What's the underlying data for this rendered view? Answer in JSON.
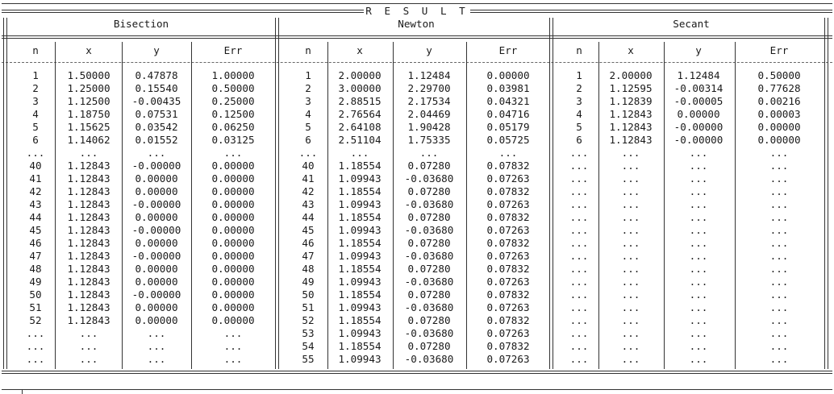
{
  "title": "R E S U L T",
  "methods": [
    "Bisection",
    "Newton",
    "Secant"
  ],
  "columns": [
    "n",
    "x",
    "y",
    "Err"
  ],
  "ellipsis": "...",
  "rows": [
    {
      "b": [
        "1",
        "1.50000",
        "0.47878",
        "1.00000"
      ],
      "nw": [
        "1",
        "2.00000",
        "1.12484",
        "0.00000"
      ],
      "s": [
        "1",
        "2.00000",
        "1.12484",
        "0.50000"
      ]
    },
    {
      "b": [
        "2",
        "1.25000",
        "0.15540",
        "0.50000"
      ],
      "nw": [
        "2",
        "3.00000",
        "2.29700",
        "0.03981"
      ],
      "s": [
        "2",
        "1.12595",
        "-0.00314",
        "0.77628"
      ]
    },
    {
      "b": [
        "3",
        "1.12500",
        "-0.00435",
        "0.25000"
      ],
      "nw": [
        "3",
        "2.88515",
        "2.17534",
        "0.04321"
      ],
      "s": [
        "3",
        "1.12839",
        "-0.00005",
        "0.00216"
      ]
    },
    {
      "b": [
        "4",
        "1.18750",
        "0.07531",
        "0.12500"
      ],
      "nw": [
        "4",
        "2.76564",
        "2.04469",
        "0.04716"
      ],
      "s": [
        "4",
        "1.12843",
        "0.00000",
        "0.00003"
      ]
    },
    {
      "b": [
        "5",
        "1.15625",
        "0.03542",
        "0.06250"
      ],
      "nw": [
        "5",
        "2.64108",
        "1.90428",
        "0.05179"
      ],
      "s": [
        "5",
        "1.12843",
        "-0.00000",
        "0.00000"
      ]
    },
    {
      "b": [
        "6",
        "1.14062",
        "0.01552",
        "0.03125"
      ],
      "nw": [
        "6",
        "2.51104",
        "1.75335",
        "0.05725"
      ],
      "s": [
        "6",
        "1.12843",
        "-0.00000",
        "0.00000"
      ]
    },
    {
      "b": [
        "...",
        "...",
        "...",
        "..."
      ],
      "nw": [
        "...",
        "...",
        "...",
        "..."
      ],
      "s": [
        "...",
        "...",
        "...",
        "..."
      ]
    },
    {
      "b": [
        "40",
        "1.12843",
        "-0.00000",
        "0.00000"
      ],
      "nw": [
        "40",
        "1.18554",
        "0.07280",
        "0.07832"
      ],
      "s": [
        "...",
        "...",
        "...",
        "..."
      ]
    },
    {
      "b": [
        "41",
        "1.12843",
        "0.00000",
        "0.00000"
      ],
      "nw": [
        "41",
        "1.09943",
        "-0.03680",
        "0.07263"
      ],
      "s": [
        "...",
        "...",
        "...",
        "..."
      ]
    },
    {
      "b": [
        "42",
        "1.12843",
        "0.00000",
        "0.00000"
      ],
      "nw": [
        "42",
        "1.18554",
        "0.07280",
        "0.07832"
      ],
      "s": [
        "...",
        "...",
        "...",
        "..."
      ]
    },
    {
      "b": [
        "43",
        "1.12843",
        "-0.00000",
        "0.00000"
      ],
      "nw": [
        "43",
        "1.09943",
        "-0.03680",
        "0.07263"
      ],
      "s": [
        "...",
        "...",
        "...",
        "..."
      ]
    },
    {
      "b": [
        "44",
        "1.12843",
        "0.00000",
        "0.00000"
      ],
      "nw": [
        "44",
        "1.18554",
        "0.07280",
        "0.07832"
      ],
      "s": [
        "...",
        "...",
        "...",
        "..."
      ]
    },
    {
      "b": [
        "45",
        "1.12843",
        "-0.00000",
        "0.00000"
      ],
      "nw": [
        "45",
        "1.09943",
        "-0.03680",
        "0.07263"
      ],
      "s": [
        "...",
        "...",
        "...",
        "..."
      ]
    },
    {
      "b": [
        "46",
        "1.12843",
        "0.00000",
        "0.00000"
      ],
      "nw": [
        "46",
        "1.18554",
        "0.07280",
        "0.07832"
      ],
      "s": [
        "...",
        "...",
        "...",
        "..."
      ]
    },
    {
      "b": [
        "47",
        "1.12843",
        "-0.00000",
        "0.00000"
      ],
      "nw": [
        "47",
        "1.09943",
        "-0.03680",
        "0.07263"
      ],
      "s": [
        "...",
        "...",
        "...",
        "..."
      ]
    },
    {
      "b": [
        "48",
        "1.12843",
        "0.00000",
        "0.00000"
      ],
      "nw": [
        "48",
        "1.18554",
        "0.07280",
        "0.07832"
      ],
      "s": [
        "...",
        "...",
        "...",
        "..."
      ]
    },
    {
      "b": [
        "49",
        "1.12843",
        "0.00000",
        "0.00000"
      ],
      "nw": [
        "49",
        "1.09943",
        "-0.03680",
        "0.07263"
      ],
      "s": [
        "...",
        "...",
        "...",
        "..."
      ]
    },
    {
      "b": [
        "50",
        "1.12843",
        "-0.00000",
        "0.00000"
      ],
      "nw": [
        "50",
        "1.18554",
        "0.07280",
        "0.07832"
      ],
      "s": [
        "...",
        "...",
        "...",
        "..."
      ]
    },
    {
      "b": [
        "51",
        "1.12843",
        "0.00000",
        "0.00000"
      ],
      "nw": [
        "51",
        "1.09943",
        "-0.03680",
        "0.07263"
      ],
      "s": [
        "...",
        "...",
        "...",
        "..."
      ]
    },
    {
      "b": [
        "52",
        "1.12843",
        "0.00000",
        "0.00000"
      ],
      "nw": [
        "52",
        "1.18554",
        "0.07280",
        "0.07832"
      ],
      "s": [
        "...",
        "...",
        "...",
        "..."
      ]
    },
    {
      "b": [
        "...",
        "...",
        "...",
        "..."
      ],
      "nw": [
        "53",
        "1.09943",
        "-0.03680",
        "0.07263"
      ],
      "s": [
        "...",
        "...",
        "...",
        "..."
      ]
    },
    {
      "b": [
        "...",
        "...",
        "...",
        "..."
      ],
      "nw": [
        "54",
        "1.18554",
        "0.07280",
        "0.07832"
      ],
      "s": [
        "...",
        "...",
        "...",
        "..."
      ]
    },
    {
      "b": [
        "...",
        "...",
        "...",
        "..."
      ],
      "nw": [
        "55",
        "1.09943",
        "-0.03680",
        "0.07263"
      ],
      "s": [
        "...",
        "...",
        "...",
        "..."
      ]
    }
  ]
}
